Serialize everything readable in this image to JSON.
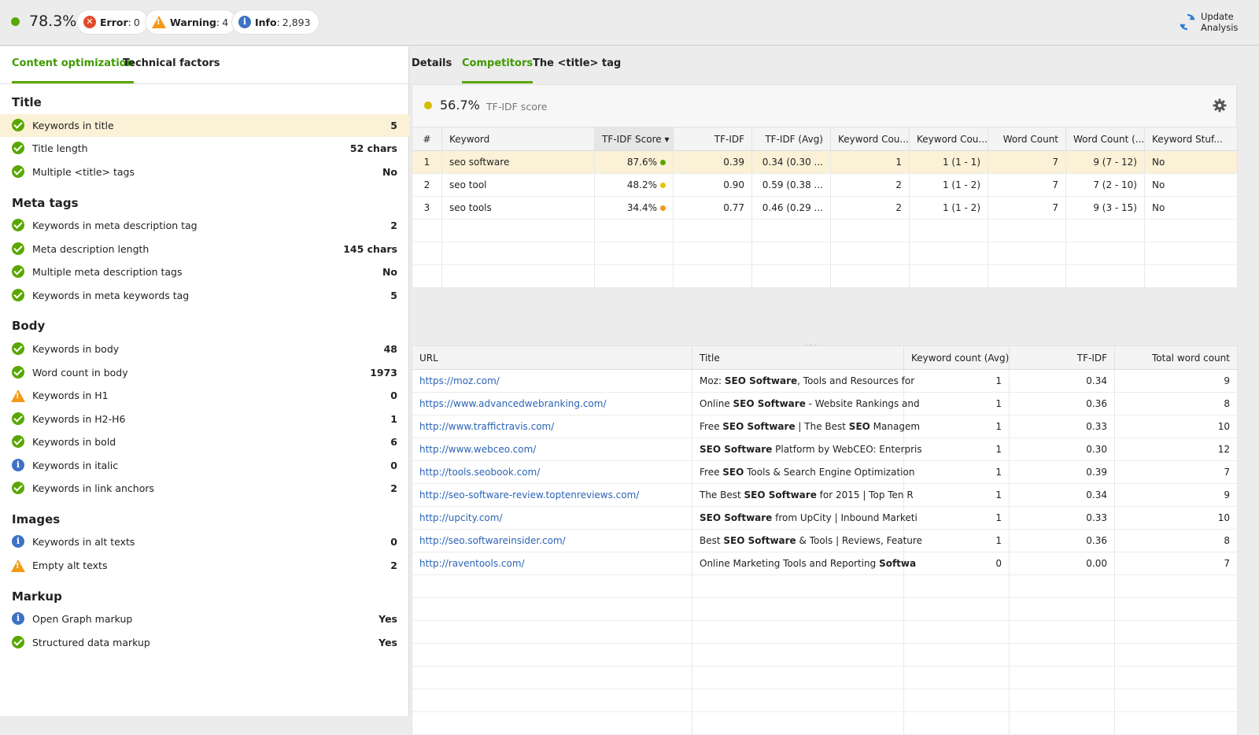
{
  "status": {
    "score": "78.3%",
    "score_color": "#5aa700",
    "error_label": "Error",
    "error_count": "0",
    "warning_label": "Warning",
    "warning_count": "4",
    "info_label": "Info",
    "info_count": "2,893",
    "update_label_line1": "Update",
    "update_label_line2": "Analysis"
  },
  "left_tabs": [
    "Content optimization",
    "Technical factors"
  ],
  "sections": [
    {
      "title": "Title",
      "items": [
        {
          "icon": "ok",
          "label": "Keywords in title",
          "value": "5",
          "selected": true
        },
        {
          "icon": "ok",
          "label": "Title length",
          "value": "52 chars"
        },
        {
          "icon": "ok",
          "label": "Multiple <title> tags",
          "value": "No"
        }
      ]
    },
    {
      "title": "Meta tags",
      "items": [
        {
          "icon": "ok",
          "label": "Keywords in meta description tag",
          "value": "2"
        },
        {
          "icon": "ok",
          "label": "Meta description length",
          "value": "145 chars"
        },
        {
          "icon": "ok",
          "label": "Multiple meta description tags",
          "value": "No"
        },
        {
          "icon": "ok",
          "label": "Keywords in meta keywords tag",
          "value": "5"
        }
      ]
    },
    {
      "title": "Body",
      "items": [
        {
          "icon": "ok",
          "label": "Keywords in body",
          "value": "48"
        },
        {
          "icon": "ok",
          "label": "Word count in body",
          "value": "1973"
        },
        {
          "icon": "warn",
          "label": "Keywords in H1",
          "value": "0"
        },
        {
          "icon": "ok",
          "label": "Keywords in H2-H6",
          "value": "1"
        },
        {
          "icon": "ok",
          "label": "Keywords in bold",
          "value": "6"
        },
        {
          "icon": "info",
          "label": "Keywords in italic",
          "value": "0"
        },
        {
          "icon": "ok",
          "label": "Keywords in link anchors",
          "value": "2"
        }
      ]
    },
    {
      "title": "Images",
      "items": [
        {
          "icon": "info",
          "label": "Keywords in alt texts",
          "value": "0"
        },
        {
          "icon": "warn",
          "label": "Empty alt texts",
          "value": "2"
        }
      ]
    },
    {
      "title": "Markup",
      "items": [
        {
          "icon": "info",
          "label": "Open Graph markup",
          "value": "Yes"
        },
        {
          "icon": "ok",
          "label": "Structured data markup",
          "value": "Yes"
        }
      ]
    }
  ],
  "right_tabs": [
    "Details",
    "Competitors",
    "The <title> tag"
  ],
  "tfidf_card": {
    "score": "56.7%",
    "caption": "TF-IDF score",
    "dot_color": "#d5bb00"
  },
  "keyword_table": {
    "headers": [
      "#",
      "Keyword",
      "TF-IDF Score ▾",
      "TF-IDF",
      "TF-IDF (Avg)",
      "Keyword Cou...",
      "Keyword Cou...",
      "Word Count",
      "Word Count (...",
      "Keyword Stuf..."
    ],
    "rows": [
      {
        "n": "1",
        "keyword": "seo software",
        "score": "87.6%",
        "dot": "#5aa700",
        "tfidf": "0.39",
        "tfidf_avg": "0.34 (0.30 ...",
        "kc": "1",
        "kc2": "1 (1 - 1)",
        "wc": "7",
        "wc2": "9 (7 - 12)",
        "stuff": "No",
        "selected": true
      },
      {
        "n": "2",
        "keyword": "seo tool",
        "score": "48.2%",
        "dot": "#e8c400",
        "tfidf": "0.90",
        "tfidf_avg": "0.59 (0.38 ...",
        "kc": "2",
        "kc2": "1 (1 - 2)",
        "wc": "7",
        "wc2": "7 (2 - 10)",
        "stuff": "No"
      },
      {
        "n": "3",
        "keyword": "seo tools",
        "score": "34.4%",
        "dot": "#f09a1a",
        "tfidf": "0.77",
        "tfidf_avg": "0.46 (0.29 ...",
        "kc": "2",
        "kc2": "1 (1 - 2)",
        "wc": "7",
        "wc2": "9 (3 - 15)",
        "stuff": "No"
      }
    ]
  },
  "competitor_table": {
    "headers": [
      "URL",
      "Title",
      "Keyword count (Avg)",
      "TF-IDF",
      "Total word count"
    ],
    "rows": [
      {
        "url": "https://moz.com/",
        "title": [
          {
            "t": "Moz: "
          },
          {
            "t": "SEO Software",
            "b": true
          },
          {
            "t": ", Tools and Resources for"
          }
        ],
        "kc": "1",
        "tfidf": "0.34",
        "wc": "9"
      },
      {
        "url": "https://www.advancedwebranking.com/",
        "title": [
          {
            "t": "Online "
          },
          {
            "t": "SEO Software",
            "b": true
          },
          {
            "t": " - Website Rankings and"
          }
        ],
        "kc": "1",
        "tfidf": "0.36",
        "wc": "8"
      },
      {
        "url": "http://www.traffictravis.com/",
        "title": [
          {
            "t": "Free "
          },
          {
            "t": "SEO Software",
            "b": true
          },
          {
            "t": " | The Best "
          },
          {
            "t": "SEO",
            "b": true
          },
          {
            "t": " Managem"
          }
        ],
        "kc": "1",
        "tfidf": "0.33",
        "wc": "10"
      },
      {
        "url": "http://www.webceo.com/",
        "title": [
          {
            "t": "SEO Software",
            "b": true
          },
          {
            "t": " Platform by WebCEO: Enterpris"
          }
        ],
        "kc": "1",
        "tfidf": "0.30",
        "wc": "12"
      },
      {
        "url": "http://tools.seobook.com/",
        "title": [
          {
            "t": "Free "
          },
          {
            "t": "SEO",
            "b": true
          },
          {
            "t": " Tools & Search Engine Optimization"
          }
        ],
        "kc": "1",
        "tfidf": "0.39",
        "wc": "7"
      },
      {
        "url": "http://seo-software-review.toptenreviews.com/",
        "title": [
          {
            "t": "The Best "
          },
          {
            "t": "SEO Software",
            "b": true
          },
          {
            "t": " for 2015 | Top Ten R"
          }
        ],
        "kc": "1",
        "tfidf": "0.34",
        "wc": "9"
      },
      {
        "url": "http://upcity.com/",
        "title": [
          {
            "t": "SEO Software",
            "b": true
          },
          {
            "t": " from UpCity | Inbound Marketi"
          }
        ],
        "kc": "1",
        "tfidf": "0.33",
        "wc": "10"
      },
      {
        "url": "http://seo.softwareinsider.com/",
        "title": [
          {
            "t": "Best "
          },
          {
            "t": "SEO Software",
            "b": true
          },
          {
            "t": " & Tools | Reviews, Feature"
          }
        ],
        "kc": "1",
        "tfidf": "0.36",
        "wc": "8"
      },
      {
        "url": "http://raventools.com/",
        "title": [
          {
            "t": "Online Marketing Tools and Reporting "
          },
          {
            "t": "Softwa",
            "b": true
          }
        ],
        "kc": "0",
        "tfidf": "0.00",
        "wc": "7"
      }
    ]
  },
  "colors": {
    "accent_green": "#5aa700",
    "warning_orange": "#f29a16",
    "info_blue": "#3d72c6",
    "error_red": "#e04b2b",
    "link_blue": "#2a64b6",
    "selected_row": "#fbf1d7"
  }
}
